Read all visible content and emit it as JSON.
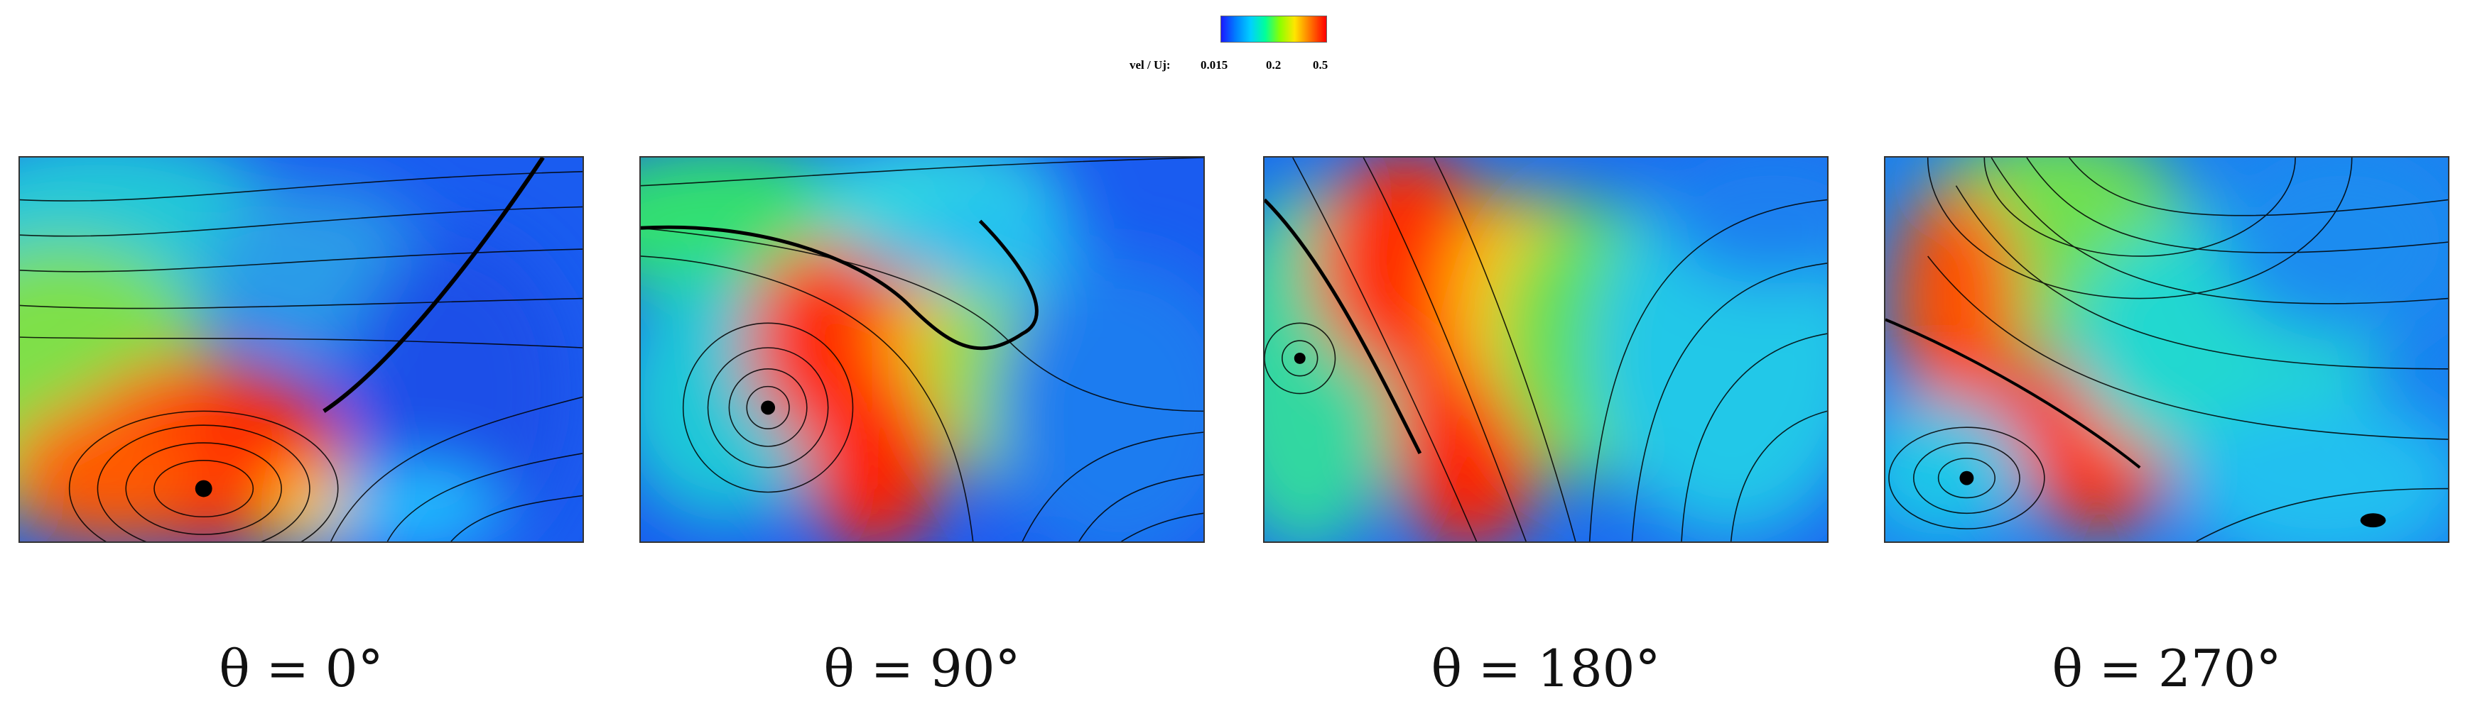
{
  "colorbar": {
    "title": "vel / Uj:",
    "ticks": [
      "0.015",
      "0.2",
      "0.5"
    ],
    "colors": [
      "#1a1aff",
      "#00d0ff",
      "#8cff00",
      "#ffe600",
      "#ff0000"
    ]
  },
  "panels": [
    {
      "label": "θ = 0°"
    },
    {
      "label": "θ = 90°"
    },
    {
      "label": "θ = 180°"
    },
    {
      "label": "θ = 270°"
    }
  ]
}
